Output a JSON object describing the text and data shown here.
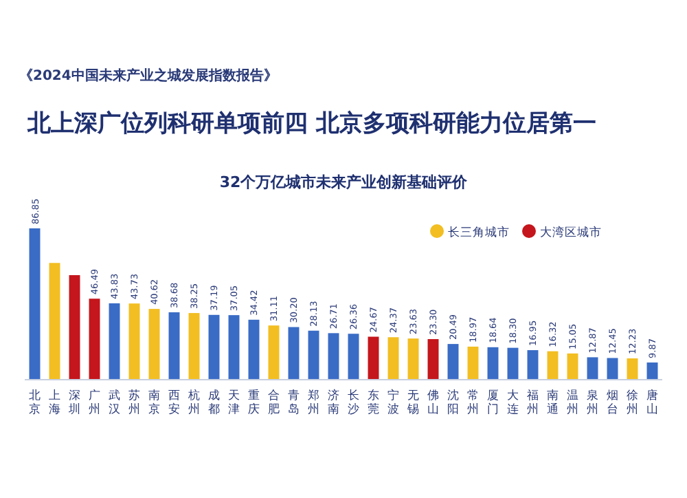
{
  "chart_data": {
    "type": "bar",
    "title": "北上深广位列科研单项前四 北京多项科研能力位居第一",
    "subtitle": "32个万亿城市未来产业创新基础评价",
    "annotations": [
      "《2024中国未来产业之城发展指数报告》"
    ],
    "categories": [
      "北京",
      "上海",
      "深圳",
      "广州",
      "武汉",
      "苏州",
      "南京",
      "西安",
      "杭州",
      "成都",
      "天津",
      "重庆",
      "合肥",
      "青岛",
      "郑州",
      "济南",
      "长沙",
      "东莞",
      "宁波",
      "无锡",
      "佛山",
      "沈阳",
      "常州",
      "厦门",
      "大连",
      "福州",
      "南通",
      "温州",
      "泉州",
      "烟台",
      "徐州",
      "唐山"
    ],
    "series": [
      {
        "color": "#3a6cc6",
        "values": [
          86.85,
          null,
          null,
          null,
          43.83,
          null,
          null,
          38.68,
          null,
          37.19,
          37.05,
          34.42,
          null,
          30.2,
          28.13,
          26.71,
          26.36,
          null,
          null,
          null,
          null,
          20.49,
          null,
          18.64,
          18.3,
          16.95,
          null,
          null,
          12.87,
          12.45,
          null,
          9.87
        ],
        "value_labels": [
          "86.85",
          null,
          null,
          null,
          "43.83",
          null,
          null,
          "38.68",
          null,
          "37.19",
          "37.05",
          "34.42",
          null,
          "30.20",
          "28.13",
          "26.71",
          "26.36",
          null,
          null,
          null,
          null,
          "20.49",
          null,
          "18.64",
          "18.30",
          "16.95",
          null,
          null,
          "12.87",
          "12.45",
          null,
          "9.87"
        ]
      },
      {
        "name": "长三角城市",
        "color": "#f2be22",
        "values": [
          null,
          67,
          null,
          null,
          null,
          43.73,
          40.62,
          null,
          38.25,
          null,
          null,
          null,
          31.11,
          null,
          null,
          null,
          null,
          null,
          24.37,
          23.63,
          null,
          null,
          18.97,
          null,
          null,
          null,
          16.32,
          15.05,
          null,
          null,
          12.23,
          null
        ],
        "value_labels": [
          null,
          null,
          null,
          null,
          null,
          "43.73",
          "40.62",
          null,
          "38.25",
          null,
          null,
          null,
          "31.11",
          null,
          null,
          null,
          null,
          null,
          "24.37",
          "23.63",
          null,
          null,
          "18.97",
          null,
          null,
          null,
          "16.32",
          "15.05",
          null,
          null,
          "12.23",
          null
        ]
      },
      {
        "name": "大湾区城市",
        "color": "#c4161c",
        "values": [
          null,
          null,
          60,
          46.49,
          null,
          null,
          null,
          null,
          null,
          null,
          null,
          null,
          null,
          null,
          null,
          null,
          null,
          24.67,
          null,
          null,
          23.3,
          null,
          null,
          null,
          null,
          null,
          null,
          null,
          null,
          null,
          null,
          null
        ],
        "value_labels": [
          null,
          null,
          null,
          "46.49",
          null,
          null,
          null,
          null,
          null,
          null,
          null,
          null,
          null,
          null,
          null,
          null,
          null,
          "24.67",
          null,
          null,
          "23.30",
          null,
          null,
          null,
          null,
          null,
          null,
          null,
          null,
          null,
          null,
          null
        ]
      }
    ],
    "legend": "top right"
  }
}
